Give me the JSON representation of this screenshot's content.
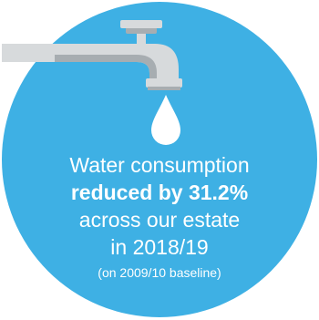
{
  "infographic": {
    "line1": "Water consumption",
    "line2": "reduced by 31.2%",
    "line3": "across our estate",
    "line4": "in 2018/19",
    "line5": "(on 2009/10 baseline)"
  },
  "icons": {
    "tap": "tap-icon",
    "drop": "water-drop-icon"
  },
  "colors": {
    "circle": "#3eb0e4",
    "tap_body": "#d7dadc",
    "tap_shadow": "#a7adb1",
    "text": "#ffffff"
  }
}
